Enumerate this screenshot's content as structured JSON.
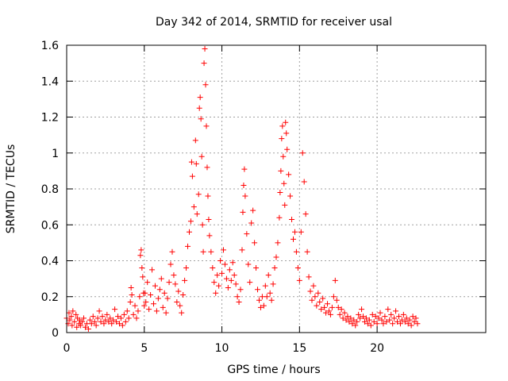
{
  "chart_data": {
    "type": "scatter",
    "title": "Day 342 of 2014, SRMTID for receiver usal",
    "xlabel": "GPS time / hours",
    "ylabel": "SRMTID / TECUs",
    "xlim": [
      0,
      27
    ],
    "ylim": [
      0,
      1.6
    ],
    "xticks": [
      0,
      5,
      10,
      15,
      20
    ],
    "xtick_labels": [
      "0",
      "5",
      "10",
      "15",
      "20"
    ],
    "yticks": [
      0,
      0.2,
      0.4,
      0.6,
      0.8,
      1,
      1.2,
      1.4,
      1.6
    ],
    "ytick_labels": [
      "0",
      "0.2",
      "0.4",
      "0.6",
      "0.8",
      "1",
      "1.2",
      "1.4",
      "1.6"
    ],
    "grid": true,
    "marker": "+",
    "color": "#ff0000",
    "series": [
      {
        "name": "SRMTID",
        "points": [
          [
            0.0,
            0.08
          ],
          [
            0.1,
            0.05
          ],
          [
            0.15,
            0.11
          ],
          [
            0.2,
            0.07
          ],
          [
            0.3,
            0.09
          ],
          [
            0.35,
            0.04
          ],
          [
            0.4,
            0.12
          ],
          [
            0.5,
            0.06
          ],
          [
            0.6,
            0.1
          ],
          [
            0.65,
            0.03
          ],
          [
            0.7,
            0.08
          ],
          [
            0.8,
            0.05
          ],
          [
            0.85,
            0.07
          ],
          [
            0.9,
            0.04
          ],
          [
            1.0,
            0.06
          ],
          [
            1.1,
            0.08
          ],
          [
            1.2,
            0.03
          ],
          [
            1.3,
            0.05
          ],
          [
            1.4,
            0.02
          ],
          [
            1.5,
            0.07
          ],
          [
            1.6,
            0.05
          ],
          [
            1.7,
            0.09
          ],
          [
            1.8,
            0.06
          ],
          [
            1.9,
            0.04
          ],
          [
            2.0,
            0.08
          ],
          [
            2.1,
            0.12
          ],
          [
            2.2,
            0.06
          ],
          [
            2.3,
            0.09
          ],
          [
            2.4,
            0.05
          ],
          [
            2.5,
            0.07
          ],
          [
            2.6,
            0.1
          ],
          [
            2.7,
            0.06
          ],
          [
            2.8,
            0.08
          ],
          [
            2.9,
            0.05
          ],
          [
            3.0,
            0.07
          ],
          [
            3.1,
            0.13
          ],
          [
            3.2,
            0.06
          ],
          [
            3.3,
            0.09
          ],
          [
            3.4,
            0.05
          ],
          [
            3.5,
            0.08
          ],
          [
            3.6,
            0.04
          ],
          [
            3.7,
            0.1
          ],
          [
            3.8,
            0.06
          ],
          [
            3.9,
            0.12
          ],
          [
            4.0,
            0.08
          ],
          [
            4.1,
            0.17
          ],
          [
            4.15,
            0.25
          ],
          [
            4.2,
            0.21
          ],
          [
            4.3,
            0.1
          ],
          [
            4.4,
            0.15
          ],
          [
            4.5,
            0.08
          ],
          [
            4.6,
            0.12
          ],
          [
            4.7,
            0.2
          ],
          [
            4.75,
            0.43
          ],
          [
            4.8,
            0.46
          ],
          [
            4.85,
            0.36
          ],
          [
            4.9,
            0.31
          ],
          [
            4.95,
            0.22
          ],
          [
            5.0,
            0.15
          ],
          [
            5.05,
            0.22
          ],
          [
            5.1,
            0.17
          ],
          [
            5.2,
            0.28
          ],
          [
            5.3,
            0.13
          ],
          [
            5.4,
            0.21
          ],
          [
            5.5,
            0.35
          ],
          [
            5.6,
            0.16
          ],
          [
            5.7,
            0.26
          ],
          [
            5.8,
            0.12
          ],
          [
            5.9,
            0.19
          ],
          [
            6.0,
            0.24
          ],
          [
            6.1,
            0.3
          ],
          [
            6.2,
            0.14
          ],
          [
            6.3,
            0.22
          ],
          [
            6.4,
            0.11
          ],
          [
            6.5,
            0.19
          ],
          [
            6.6,
            0.28
          ],
          [
            6.7,
            0.38
          ],
          [
            6.8,
            0.45
          ],
          [
            6.9,
            0.32
          ],
          [
            7.0,
            0.27
          ],
          [
            7.1,
            0.17
          ],
          [
            7.2,
            0.23
          ],
          [
            7.3,
            0.15
          ],
          [
            7.4,
            0.11
          ],
          [
            7.5,
            0.21
          ],
          [
            7.6,
            0.29
          ],
          [
            7.7,
            0.36
          ],
          [
            7.8,
            0.48
          ],
          [
            7.9,
            0.56
          ],
          [
            8.0,
            0.62
          ],
          [
            8.05,
            0.95
          ],
          [
            8.1,
            0.87
          ],
          [
            8.2,
            0.7
          ],
          [
            8.3,
            1.07
          ],
          [
            8.35,
            0.94
          ],
          [
            8.4,
            0.66
          ],
          [
            8.5,
            0.77
          ],
          [
            8.55,
            1.25
          ],
          [
            8.6,
            1.31
          ],
          [
            8.65,
            1.19
          ],
          [
            8.7,
            0.98
          ],
          [
            8.75,
            0.6
          ],
          [
            8.8,
            0.45
          ],
          [
            8.85,
            1.5
          ],
          [
            8.9,
            1.58
          ],
          [
            8.95,
            1.38
          ],
          [
            9.0,
            1.15
          ],
          [
            9.05,
            0.92
          ],
          [
            9.1,
            0.76
          ],
          [
            9.15,
            0.63
          ],
          [
            9.2,
            0.54
          ],
          [
            9.3,
            0.45
          ],
          [
            9.4,
            0.36
          ],
          [
            9.5,
            0.28
          ],
          [
            9.6,
            0.22
          ],
          [
            9.7,
            0.32
          ],
          [
            9.8,
            0.26
          ],
          [
            9.9,
            0.4
          ],
          [
            10.0,
            0.33
          ],
          [
            10.1,
            0.46
          ],
          [
            10.2,
            0.38
          ],
          [
            10.3,
            0.3
          ],
          [
            10.4,
            0.25
          ],
          [
            10.5,
            0.35
          ],
          [
            10.6,
            0.29
          ],
          [
            10.7,
            0.39
          ],
          [
            10.8,
            0.32
          ],
          [
            10.9,
            0.27
          ],
          [
            11.0,
            0.2
          ],
          [
            11.1,
            0.17
          ],
          [
            11.2,
            0.24
          ],
          [
            11.3,
            0.46
          ],
          [
            11.35,
            0.67
          ],
          [
            11.4,
            0.82
          ],
          [
            11.45,
            0.91
          ],
          [
            11.5,
            0.76
          ],
          [
            11.6,
            0.55
          ],
          [
            11.7,
            0.38
          ],
          [
            11.8,
            0.28
          ],
          [
            11.9,
            0.61
          ],
          [
            12.0,
            0.68
          ],
          [
            12.1,
            0.5
          ],
          [
            12.2,
            0.36
          ],
          [
            12.3,
            0.24
          ],
          [
            12.4,
            0.18
          ],
          [
            12.5,
            0.14
          ],
          [
            12.6,
            0.2
          ],
          [
            12.7,
            0.15
          ],
          [
            12.8,
            0.26
          ],
          [
            12.9,
            0.2
          ],
          [
            13.0,
            0.32
          ],
          [
            13.1,
            0.22
          ],
          [
            13.2,
            0.18
          ],
          [
            13.3,
            0.27
          ],
          [
            13.4,
            0.36
          ],
          [
            13.5,
            0.42
          ],
          [
            13.6,
            0.5
          ],
          [
            13.7,
            0.64
          ],
          [
            13.75,
            0.78
          ],
          [
            13.8,
            0.9
          ],
          [
            13.85,
            1.08
          ],
          [
            13.9,
            1.15
          ],
          [
            13.95,
            0.98
          ],
          [
            14.0,
            0.83
          ],
          [
            14.05,
            0.71
          ],
          [
            14.1,
            1.17
          ],
          [
            14.15,
            1.11
          ],
          [
            14.2,
            1.02
          ],
          [
            14.3,
            0.88
          ],
          [
            14.4,
            0.76
          ],
          [
            14.5,
            0.63
          ],
          [
            14.6,
            0.52
          ],
          [
            14.7,
            0.56
          ],
          [
            14.8,
            0.45
          ],
          [
            14.9,
            0.36
          ],
          [
            15.0,
            0.29
          ],
          [
            15.1,
            0.56
          ],
          [
            15.2,
            1.0
          ],
          [
            15.3,
            0.84
          ],
          [
            15.4,
            0.66
          ],
          [
            15.5,
            0.45
          ],
          [
            15.6,
            0.31
          ],
          [
            15.7,
            0.23
          ],
          [
            15.8,
            0.18
          ],
          [
            15.9,
            0.26
          ],
          [
            16.0,
            0.2
          ],
          [
            16.1,
            0.15
          ],
          [
            16.2,
            0.22
          ],
          [
            16.3,
            0.17
          ],
          [
            16.4,
            0.13
          ],
          [
            16.5,
            0.19
          ],
          [
            16.6,
            0.14
          ],
          [
            16.7,
            0.11
          ],
          [
            16.8,
            0.16
          ],
          [
            16.9,
            0.12
          ],
          [
            17.0,
            0.1
          ],
          [
            17.1,
            0.14
          ],
          [
            17.2,
            0.2
          ],
          [
            17.3,
            0.29
          ],
          [
            17.4,
            0.18
          ],
          [
            17.5,
            0.14
          ],
          [
            17.6,
            0.1
          ],
          [
            17.7,
            0.13
          ],
          [
            17.8,
            0.08
          ],
          [
            17.9,
            0.11
          ],
          [
            18.0,
            0.07
          ],
          [
            18.1,
            0.09
          ],
          [
            18.2,
            0.06
          ],
          [
            18.3,
            0.08
          ],
          [
            18.4,
            0.05
          ],
          [
            18.5,
            0.07
          ],
          [
            18.6,
            0.04
          ],
          [
            18.7,
            0.06
          ],
          [
            18.8,
            0.1
          ],
          [
            18.9,
            0.08
          ],
          [
            19.0,
            0.13
          ],
          [
            19.1,
            0.09
          ],
          [
            19.2,
            0.06
          ],
          [
            19.3,
            0.08
          ],
          [
            19.4,
            0.05
          ],
          [
            19.5,
            0.07
          ],
          [
            19.6,
            0.04
          ],
          [
            19.7,
            0.1
          ],
          [
            19.8,
            0.06
          ],
          [
            19.9,
            0.09
          ],
          [
            20.0,
            0.05
          ],
          [
            20.1,
            0.08
          ],
          [
            20.2,
            0.11
          ],
          [
            20.3,
            0.07
          ],
          [
            20.4,
            0.05
          ],
          [
            20.5,
            0.09
          ],
          [
            20.6,
            0.06
          ],
          [
            20.7,
            0.13
          ],
          [
            20.8,
            0.07
          ],
          [
            20.9,
            0.1
          ],
          [
            21.0,
            0.05
          ],
          [
            21.1,
            0.08
          ],
          [
            21.2,
            0.12
          ],
          [
            21.3,
            0.06
          ],
          [
            21.4,
            0.09
          ],
          [
            21.5,
            0.05
          ],
          [
            21.6,
            0.07
          ],
          [
            21.7,
            0.1
          ],
          [
            21.8,
            0.06
          ],
          [
            21.9,
            0.08
          ],
          [
            22.0,
            0.05
          ],
          [
            22.1,
            0.07
          ],
          [
            22.2,
            0.04
          ],
          [
            22.3,
            0.09
          ],
          [
            22.4,
            0.06
          ],
          [
            22.5,
            0.08
          ],
          [
            22.6,
            0.05
          ]
        ]
      }
    ]
  }
}
